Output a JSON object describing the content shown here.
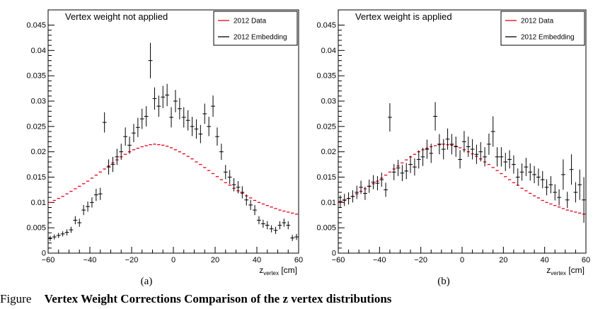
{
  "chart_data": [
    {
      "type": "scatter",
      "title": "Vertex weight not applied",
      "xlabel_main": "z",
      "xlabel_sub": "vertex",
      "xlabel_unit": " [cm]",
      "xlim": [
        -60,
        60
      ],
      "ylim": [
        0,
        0.048
      ],
      "xticks": [
        -60,
        -40,
        -20,
        0,
        20,
        40,
        60
      ],
      "yticks": [
        0,
        0.005,
        0.01,
        0.015,
        0.02,
        0.025,
        0.03,
        0.035,
        0.04,
        0.045
      ],
      "ytick_labels": [
        "0",
        "0.005",
        "0.01",
        "0.015",
        "0.02",
        "0.025",
        "0.03",
        "0.035",
        "0.04",
        "0.045"
      ],
      "legend_position": "top-right",
      "series": [
        {
          "name": "2012 Data",
          "color": "#e8001c",
          "style": "hist-step",
          "x_start": -60,
          "bin_width": 2,
          "values": [
            0.01,
            0.0104,
            0.0108,
            0.0112,
            0.0117,
            0.0122,
            0.0127,
            0.0132,
            0.0137,
            0.0142,
            0.0148,
            0.0154,
            0.016,
            0.0166,
            0.0172,
            0.0178,
            0.0184,
            0.019,
            0.0195,
            0.02,
            0.0204,
            0.0207,
            0.021,
            0.0212,
            0.0214,
            0.0215,
            0.0214,
            0.0213,
            0.0211,
            0.0208,
            0.0204,
            0.02,
            0.0196,
            0.0191,
            0.0186,
            0.018,
            0.0175,
            0.0169,
            0.0163,
            0.0157,
            0.0151,
            0.0145,
            0.0139,
            0.0134,
            0.0128,
            0.0123,
            0.0118,
            0.0113,
            0.0109,
            0.0104,
            0.01,
            0.0097,
            0.0094,
            0.0091,
            0.0088,
            0.0085,
            0.0083,
            0.0081,
            0.0079,
            0.0077
          ]
        },
        {
          "name": "2012 Embedding",
          "color": "#000000",
          "style": "points-errorbars",
          "x": [
            -59,
            -57,
            -55,
            -53,
            -51,
            -49,
            -47,
            -45,
            -43,
            -41,
            -39,
            -37,
            -35,
            -33,
            -31,
            -29,
            -27,
            -25,
            -23,
            -21,
            -19,
            -17,
            -15,
            -13,
            -11,
            -9,
            -7,
            -5,
            -3,
            -1,
            1,
            3,
            5,
            7,
            9,
            11,
            13,
            15,
            17,
            19,
            21,
            23,
            25,
            27,
            29,
            31,
            33,
            35,
            37,
            39,
            41,
            43,
            45,
            47,
            49,
            51,
            53,
            55,
            57,
            59
          ],
          "y": [
            0.0029,
            0.0032,
            0.0035,
            0.0038,
            0.0041,
            0.0046,
            0.0065,
            0.006,
            0.0085,
            0.0092,
            0.01,
            0.0115,
            0.0117,
            0.0258,
            0.017,
            0.0175,
            0.019,
            0.02,
            0.023,
            0.0213,
            0.0237,
            0.0248,
            0.0265,
            0.027,
            0.038,
            0.0305,
            0.029,
            0.0308,
            0.0312,
            0.0268,
            0.03,
            0.0285,
            0.0268,
            0.0262,
            0.025,
            0.0245,
            0.0235,
            0.0275,
            0.025,
            0.029,
            0.023,
            0.02,
            0.016,
            0.015,
            0.0135,
            0.013,
            0.012,
            0.0105,
            0.0095,
            0.0085,
            0.0065,
            0.0058,
            0.0055,
            0.0048,
            0.0045,
            0.0055,
            0.006,
            0.0055,
            0.003,
            0.0032
          ],
          "err": [
            0.0005,
            0.0005,
            0.0005,
            0.0005,
            0.0006,
            0.0006,
            0.0008,
            0.0008,
            0.001,
            0.001,
            0.001,
            0.0012,
            0.0012,
            0.002,
            0.0015,
            0.0015,
            0.0016,
            0.0016,
            0.0018,
            0.0017,
            0.0018,
            0.0019,
            0.002,
            0.002,
            0.0035,
            0.0022,
            0.0021,
            0.0022,
            0.0022,
            0.002,
            0.0022,
            0.0021,
            0.002,
            0.002,
            0.0019,
            0.0019,
            0.0018,
            0.002,
            0.0019,
            0.0021,
            0.0018,
            0.0016,
            0.0014,
            0.0014,
            0.0013,
            0.0012,
            0.0012,
            0.0011,
            0.001,
            0.001,
            0.0008,
            0.0008,
            0.0008,
            0.0007,
            0.0007,
            0.0008,
            0.0008,
            0.0008,
            0.0006,
            0.0006
          ]
        }
      ]
    },
    {
      "type": "scatter",
      "title": "Vertex weight is applied",
      "xlabel_main": "z",
      "xlabel_sub": "vertex",
      "xlabel_unit": " [cm]",
      "xlim": [
        -60,
        60
      ],
      "ylim": [
        0,
        0.048
      ],
      "xticks": [
        -60,
        -40,
        -20,
        0,
        20,
        40,
        60
      ],
      "yticks": [
        0,
        0.005,
        0.01,
        0.015,
        0.02,
        0.025,
        0.03,
        0.035,
        0.04,
        0.045
      ],
      "ytick_labels": [
        "0",
        "0.005",
        "0.01",
        "0.015",
        "0.02",
        "0.025",
        "0.03",
        "0.035",
        "0.04",
        "0.045"
      ],
      "legend_position": "top-right",
      "series": [
        {
          "name": "2012 Data",
          "color": "#e8001c",
          "style": "hist-step",
          "x_start": -60,
          "bin_width": 2,
          "values": [
            0.01,
            0.0104,
            0.0108,
            0.0112,
            0.0117,
            0.0122,
            0.0127,
            0.0132,
            0.0137,
            0.0142,
            0.0148,
            0.0154,
            0.016,
            0.0166,
            0.0172,
            0.0178,
            0.0184,
            0.019,
            0.0195,
            0.02,
            0.0204,
            0.0207,
            0.021,
            0.0212,
            0.0214,
            0.0215,
            0.0214,
            0.0213,
            0.0211,
            0.0208,
            0.0204,
            0.02,
            0.0196,
            0.0191,
            0.0186,
            0.018,
            0.0175,
            0.0169,
            0.0163,
            0.0157,
            0.0151,
            0.0145,
            0.0139,
            0.0134,
            0.0128,
            0.0123,
            0.0118,
            0.0113,
            0.0109,
            0.0104,
            0.01,
            0.0097,
            0.0094,
            0.0091,
            0.0088,
            0.0085,
            0.0083,
            0.0081,
            0.0079,
            0.0077
          ]
        },
        {
          "name": "2012 Embedding",
          "color": "#000000",
          "style": "points-errorbars",
          "x": [
            -59,
            -57,
            -55,
            -53,
            -51,
            -49,
            -47,
            -45,
            -43,
            -41,
            -39,
            -37,
            -35,
            -33,
            -31,
            -29,
            -27,
            -25,
            -23,
            -21,
            -19,
            -17,
            -15,
            -13,
            -11,
            -9,
            -7,
            -5,
            -3,
            -1,
            1,
            3,
            5,
            7,
            9,
            11,
            13,
            15,
            17,
            19,
            21,
            23,
            25,
            27,
            29,
            31,
            33,
            35,
            37,
            39,
            41,
            43,
            45,
            47,
            49,
            51,
            53,
            55,
            57,
            59
          ],
          "y": [
            0.0102,
            0.0105,
            0.0108,
            0.0112,
            0.012,
            0.013,
            0.0118,
            0.0132,
            0.014,
            0.0138,
            0.0145,
            0.0125,
            0.0268,
            0.016,
            0.0168,
            0.0158,
            0.0162,
            0.0175,
            0.017,
            0.0185,
            0.019,
            0.0205,
            0.0197,
            0.027,
            0.0215,
            0.0205,
            0.0225,
            0.0215,
            0.021,
            0.0185,
            0.022,
            0.021,
            0.0205,
            0.0195,
            0.02,
            0.019,
            0.0215,
            0.024,
            0.019,
            0.019,
            0.018,
            0.0185,
            0.0175,
            0.015,
            0.016,
            0.017,
            0.016,
            0.0155,
            0.015,
            0.0145,
            0.013,
            0.0135,
            0.012,
            0.011,
            0.0155,
            0.0105,
            0.0165,
            0.012,
            0.0135,
            0.0105
          ],
          "err": [
            0.0012,
            0.0012,
            0.0012,
            0.0012,
            0.0013,
            0.0013,
            0.0013,
            0.0013,
            0.0014,
            0.0014,
            0.0014,
            0.0014,
            0.0028,
            0.0016,
            0.0016,
            0.0016,
            0.0016,
            0.0017,
            0.0017,
            0.0018,
            0.0018,
            0.0019,
            0.0019,
            0.0028,
            0.002,
            0.002,
            0.0021,
            0.002,
            0.002,
            0.0018,
            0.0021,
            0.002,
            0.002,
            0.0019,
            0.0019,
            0.0019,
            0.0021,
            0.003,
            0.0019,
            0.0019,
            0.0018,
            0.0018,
            0.0018,
            0.0017,
            0.0017,
            0.0018,
            0.0017,
            0.0017,
            0.0017,
            0.0017,
            0.0016,
            0.0017,
            0.0016,
            0.0016,
            0.003,
            0.0016,
            0.003,
            0.002,
            0.003,
            0.0045
          ]
        }
      ]
    }
  ],
  "panel_labels": [
    "(a)",
    "(b)"
  ],
  "caption": {
    "figure_label": "Figure",
    "text": "Vertex Weight Corrections Comparison of the z vertex distributions"
  }
}
